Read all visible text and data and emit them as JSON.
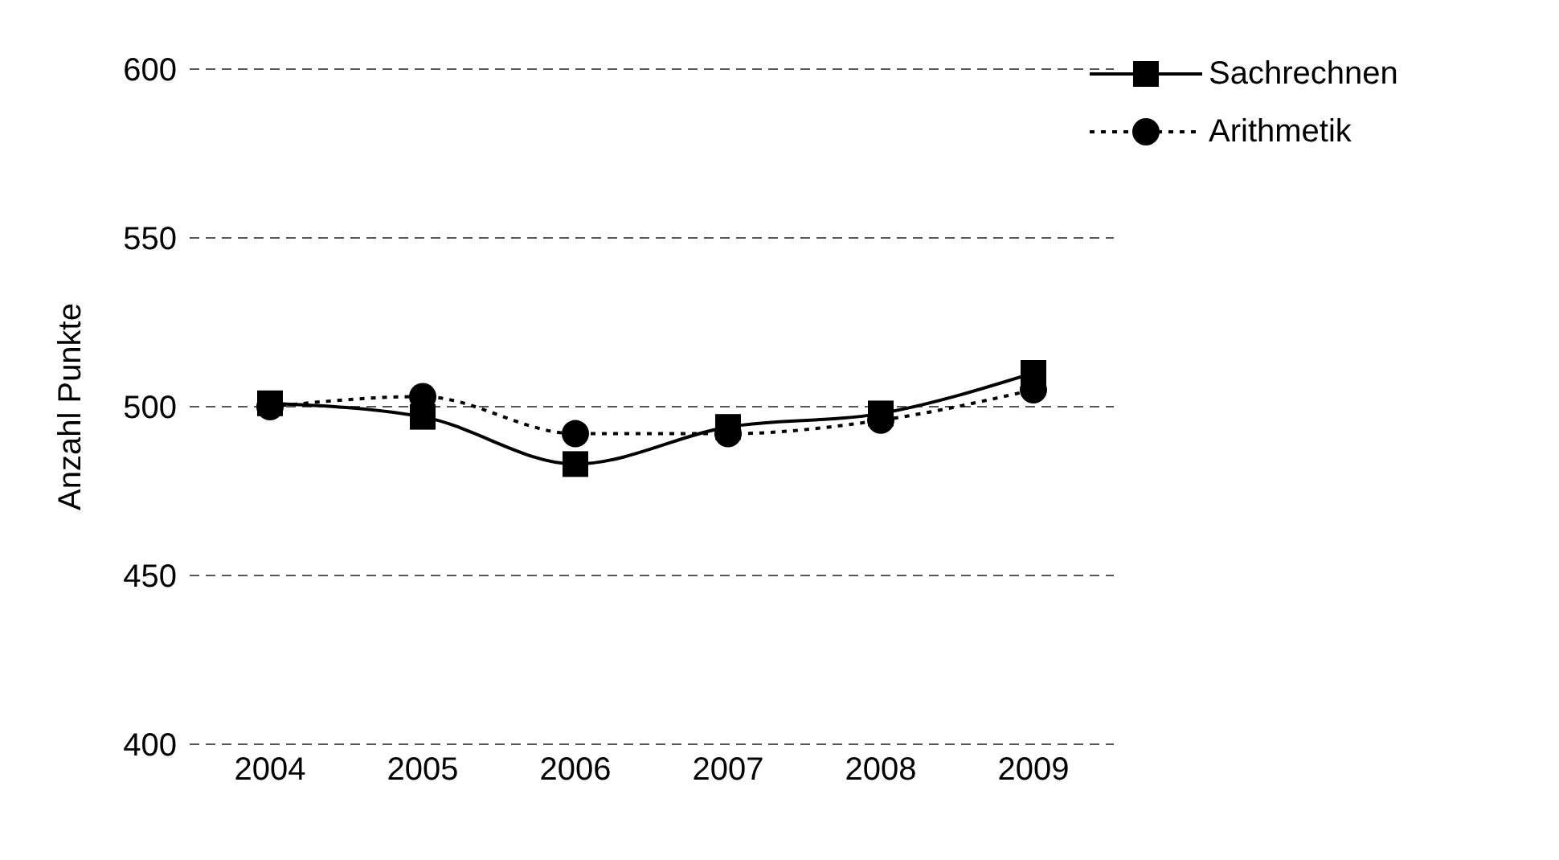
{
  "chart_data": {
    "type": "line",
    "ylabel": "Anzahl Punkte",
    "categories": [
      "2004",
      "2005",
      "2006",
      "2007",
      "2008",
      "2009"
    ],
    "series": [
      {
        "name": "Sachrechnen",
        "color": "#000000",
        "values": [
          501,
          497,
          483,
          494,
          498,
          510
        ],
        "marker": "square",
        "line_style": "solid"
      },
      {
        "name": "Arithmetik",
        "color": "#000000",
        "values": [
          500,
          503,
          492,
          492,
          496,
          505
        ],
        "marker": "circle",
        "line_style": "dotted"
      }
    ],
    "ylim": [
      400,
      600
    ],
    "yticks": [
      400,
      450,
      500,
      550,
      600
    ],
    "grid": "y",
    "legend": "top right"
  }
}
